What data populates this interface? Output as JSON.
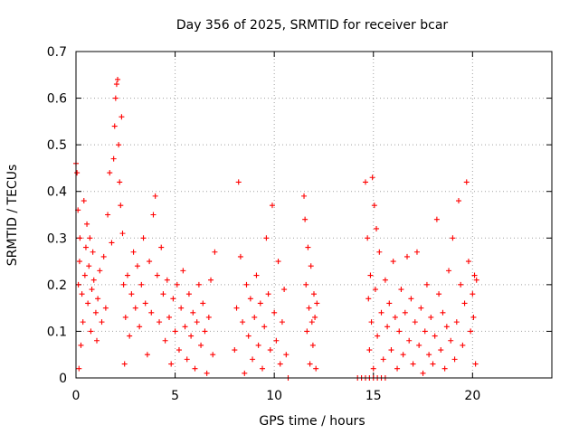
{
  "chart_data": {
    "type": "scatter",
    "title": "Day 356 of 2025, SRMTID for receiver bcar",
    "xlabel": "GPS time / hours",
    "ylabel": "SRMTID / TECUs",
    "xlim": [
      0,
      24
    ],
    "ylim": [
      0,
      0.7
    ],
    "xticks": [
      0,
      5,
      10,
      15,
      20
    ],
    "xtick_labels": [
      "0",
      "5",
      "10",
      "15",
      "20"
    ],
    "yticks": [
      0,
      0.1,
      0.2,
      0.3,
      0.4,
      0.5,
      0.6,
      0.7
    ],
    "ytick_labels": [
      "0",
      "0.1",
      "0.2",
      "0.3",
      "0.4",
      "0.5",
      "0.6",
      "0.7"
    ],
    "grid": true,
    "marker": "+",
    "series": [
      {
        "name": "SRMTID",
        "color": "#ff0000",
        "points": [
          [
            0.0,
            0.46
          ],
          [
            0.05,
            0.44
          ],
          [
            0.1,
            0.36
          ],
          [
            0.12,
            0.2
          ],
          [
            0.15,
            0.02
          ],
          [
            0.18,
            0.25
          ],
          [
            0.2,
            0.3
          ],
          [
            0.25,
            0.07
          ],
          [
            0.3,
            0.18
          ],
          [
            0.35,
            0.12
          ],
          [
            0.4,
            0.38
          ],
          [
            0.45,
            0.22
          ],
          [
            0.5,
            0.28
          ],
          [
            0.55,
            0.33
          ],
          [
            0.6,
            0.16
          ],
          [
            0.65,
            0.24
          ],
          [
            0.7,
            0.3
          ],
          [
            0.75,
            0.1
          ],
          [
            0.8,
            0.19
          ],
          [
            0.85,
            0.27
          ],
          [
            0.9,
            0.21
          ],
          [
            1.0,
            0.14
          ],
          [
            1.05,
            0.08
          ],
          [
            1.1,
            0.17
          ],
          [
            1.2,
            0.23
          ],
          [
            1.3,
            0.12
          ],
          [
            1.4,
            0.26
          ],
          [
            1.5,
            0.15
          ],
          [
            1.6,
            0.35
          ],
          [
            1.7,
            0.44
          ],
          [
            1.8,
            0.29
          ],
          [
            1.9,
            0.47
          ],
          [
            1.95,
            0.54
          ],
          [
            2.0,
            0.6
          ],
          [
            2.05,
            0.63
          ],
          [
            2.1,
            0.64
          ],
          [
            2.15,
            0.5
          ],
          [
            2.2,
            0.42
          ],
          [
            2.25,
            0.37
          ],
          [
            2.3,
            0.56
          ],
          [
            2.35,
            0.31
          ],
          [
            2.4,
            0.2
          ],
          [
            2.45,
            0.03
          ],
          [
            2.5,
            0.13
          ],
          [
            2.6,
            0.22
          ],
          [
            2.7,
            0.09
          ],
          [
            2.8,
            0.18
          ],
          [
            2.9,
            0.27
          ],
          [
            3.0,
            0.15
          ],
          [
            3.1,
            0.24
          ],
          [
            3.2,
            0.11
          ],
          [
            3.3,
            0.2
          ],
          [
            3.4,
            0.3
          ],
          [
            3.5,
            0.16
          ],
          [
            3.6,
            0.05
          ],
          [
            3.7,
            0.25
          ],
          [
            3.8,
            0.14
          ],
          [
            3.9,
            0.35
          ],
          [
            4.0,
            0.39
          ],
          [
            4.1,
            0.22
          ],
          [
            4.2,
            0.12
          ],
          [
            4.3,
            0.28
          ],
          [
            4.4,
            0.18
          ],
          [
            4.5,
            0.08
          ],
          [
            4.6,
            0.21
          ],
          [
            4.7,
            0.13
          ],
          [
            4.8,
            0.03
          ],
          [
            4.9,
            0.17
          ],
          [
            5.0,
            0.1
          ],
          [
            5.1,
            0.2
          ],
          [
            5.2,
            0.06
          ],
          [
            5.3,
            0.15
          ],
          [
            5.4,
            0.23
          ],
          [
            5.5,
            0.11
          ],
          [
            5.6,
            0.04
          ],
          [
            5.7,
            0.18
          ],
          [
            5.8,
            0.09
          ],
          [
            5.9,
            0.14
          ],
          [
            6.0,
            0.02
          ],
          [
            6.1,
            0.12
          ],
          [
            6.2,
            0.2
          ],
          [
            6.3,
            0.07
          ],
          [
            6.4,
            0.16
          ],
          [
            6.5,
            0.1
          ],
          [
            6.6,
            0.01
          ],
          [
            6.7,
            0.13
          ],
          [
            6.8,
            0.21
          ],
          [
            6.9,
            0.05
          ],
          [
            7.0,
            0.27
          ],
          [
            8.0,
            0.06
          ],
          [
            8.1,
            0.15
          ],
          [
            8.2,
            0.42
          ],
          [
            8.3,
            0.26
          ],
          [
            8.4,
            0.12
          ],
          [
            8.5,
            0.01
          ],
          [
            8.6,
            0.2
          ],
          [
            8.7,
            0.09
          ],
          [
            8.8,
            0.17
          ],
          [
            8.9,
            0.04
          ],
          [
            9.0,
            0.13
          ],
          [
            9.1,
            0.22
          ],
          [
            9.2,
            0.07
          ],
          [
            9.3,
            0.16
          ],
          [
            9.4,
            0.02
          ],
          [
            9.5,
            0.11
          ],
          [
            9.6,
            0.3
          ],
          [
            9.7,
            0.18
          ],
          [
            9.8,
            0.06
          ],
          [
            9.9,
            0.37
          ],
          [
            10.0,
            0.14
          ],
          [
            10.1,
            0.08
          ],
          [
            10.2,
            0.25
          ],
          [
            10.3,
            0.03
          ],
          [
            10.4,
            0.12
          ],
          [
            10.5,
            0.19
          ],
          [
            10.6,
            0.05
          ],
          [
            10.7,
            0.0
          ],
          [
            11.5,
            0.39
          ],
          [
            11.55,
            0.34
          ],
          [
            11.6,
            0.2
          ],
          [
            11.65,
            0.1
          ],
          [
            11.7,
            0.28
          ],
          [
            11.75,
            0.15
          ],
          [
            11.8,
            0.03
          ],
          [
            11.85,
            0.24
          ],
          [
            11.9,
            0.12
          ],
          [
            11.95,
            0.07
          ],
          [
            12.0,
            0.18
          ],
          [
            12.05,
            0.13
          ],
          [
            12.1,
            0.02
          ],
          [
            12.15,
            0.16
          ],
          [
            14.2,
            0.0
          ],
          [
            14.4,
            0.0
          ],
          [
            14.6,
            0.0
          ],
          [
            14.8,
            0.0
          ],
          [
            15.0,
            0.0
          ],
          [
            15.2,
            0.0
          ],
          [
            15.4,
            0.0
          ],
          [
            15.6,
            0.0
          ],
          [
            14.6,
            0.42
          ],
          [
            14.7,
            0.3
          ],
          [
            14.75,
            0.17
          ],
          [
            14.8,
            0.06
          ],
          [
            14.85,
            0.22
          ],
          [
            14.9,
            0.12
          ],
          [
            14.95,
            0.43
          ],
          [
            15.0,
            0.02
          ],
          [
            15.05,
            0.37
          ],
          [
            15.1,
            0.19
          ],
          [
            15.15,
            0.32
          ],
          [
            15.2,
            0.09
          ],
          [
            15.3,
            0.27
          ],
          [
            15.4,
            0.14
          ],
          [
            15.5,
            0.04
          ],
          [
            15.6,
            0.21
          ],
          [
            15.7,
            0.11
          ],
          [
            15.8,
            0.16
          ],
          [
            15.9,
            0.06
          ],
          [
            16.0,
            0.25
          ],
          [
            16.1,
            0.13
          ],
          [
            16.2,
            0.02
          ],
          [
            16.3,
            0.1
          ],
          [
            16.4,
            0.19
          ],
          [
            16.5,
            0.05
          ],
          [
            16.6,
            0.14
          ],
          [
            16.7,
            0.26
          ],
          [
            16.8,
            0.08
          ],
          [
            16.9,
            0.17
          ],
          [
            17.0,
            0.03
          ],
          [
            17.1,
            0.12
          ],
          [
            17.2,
            0.27
          ],
          [
            17.3,
            0.07
          ],
          [
            17.4,
            0.15
          ],
          [
            17.5,
            0.01
          ],
          [
            17.6,
            0.1
          ],
          [
            17.7,
            0.2
          ],
          [
            17.8,
            0.05
          ],
          [
            17.9,
            0.13
          ],
          [
            18.0,
            0.03
          ],
          [
            18.1,
            0.09
          ],
          [
            18.2,
            0.34
          ],
          [
            18.3,
            0.18
          ],
          [
            18.4,
            0.06
          ],
          [
            18.5,
            0.14
          ],
          [
            18.6,
            0.02
          ],
          [
            18.7,
            0.11
          ],
          [
            18.8,
            0.23
          ],
          [
            18.9,
            0.08
          ],
          [
            19.0,
            0.3
          ],
          [
            19.1,
            0.04
          ],
          [
            19.2,
            0.12
          ],
          [
            19.3,
            0.38
          ],
          [
            19.4,
            0.2
          ],
          [
            19.5,
            0.07
          ],
          [
            19.6,
            0.16
          ],
          [
            19.7,
            0.42
          ],
          [
            19.8,
            0.25
          ],
          [
            19.9,
            0.1
          ],
          [
            20.0,
            0.18
          ],
          [
            20.05,
            0.13
          ],
          [
            20.1,
            0.22
          ],
          [
            20.15,
            0.03
          ],
          [
            20.2,
            0.21
          ]
        ]
      }
    ]
  }
}
